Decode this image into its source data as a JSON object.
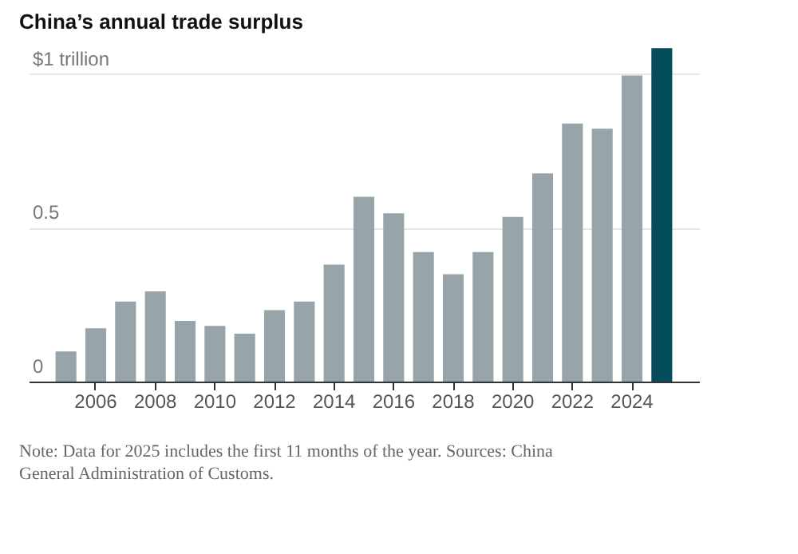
{
  "chart_data": {
    "type": "bar",
    "title": "China’s annual trade surplus",
    "categories": [
      null,
      "2006",
      null,
      "2008",
      null,
      "2010",
      null,
      "2012",
      null,
      "2014",
      null,
      "2016",
      null,
      "2018",
      null,
      "2020",
      null,
      "2022",
      null,
      "2024",
      null
    ],
    "values": [
      0.098,
      0.173,
      0.26,
      0.293,
      0.197,
      0.181,
      0.156,
      0.232,
      0.26,
      0.38,
      0.601,
      0.547,
      0.421,
      0.349,
      0.421,
      0.535,
      0.677,
      0.839,
      0.822,
      0.995,
      1.084
    ],
    "colors": [
      "#97a4aa",
      "#97a4aa",
      "#97a4aa",
      "#97a4aa",
      "#97a4aa",
      "#97a4aa",
      "#97a4aa",
      "#97a4aa",
      "#97a4aa",
      "#97a4aa",
      "#97a4aa",
      "#97a4aa",
      "#97a4aa",
      "#97a4aa",
      "#97a4aa",
      "#97a4aa",
      "#97a4aa",
      "#97a4aa",
      "#97a4aa",
      "#97a4aa",
      "#064d5c"
    ],
    "ylim": [
      0,
      1.09
    ],
    "yticks": [
      0,
      0.5,
      {
        "value": 1,
        "label": "$1 trillion"
      }
    ],
    "grid": "y",
    "annotations": [
      "Note: Data for 2025 includes the first 11 months of the year.  Sources: China General Administration of Customs."
    ]
  }
}
